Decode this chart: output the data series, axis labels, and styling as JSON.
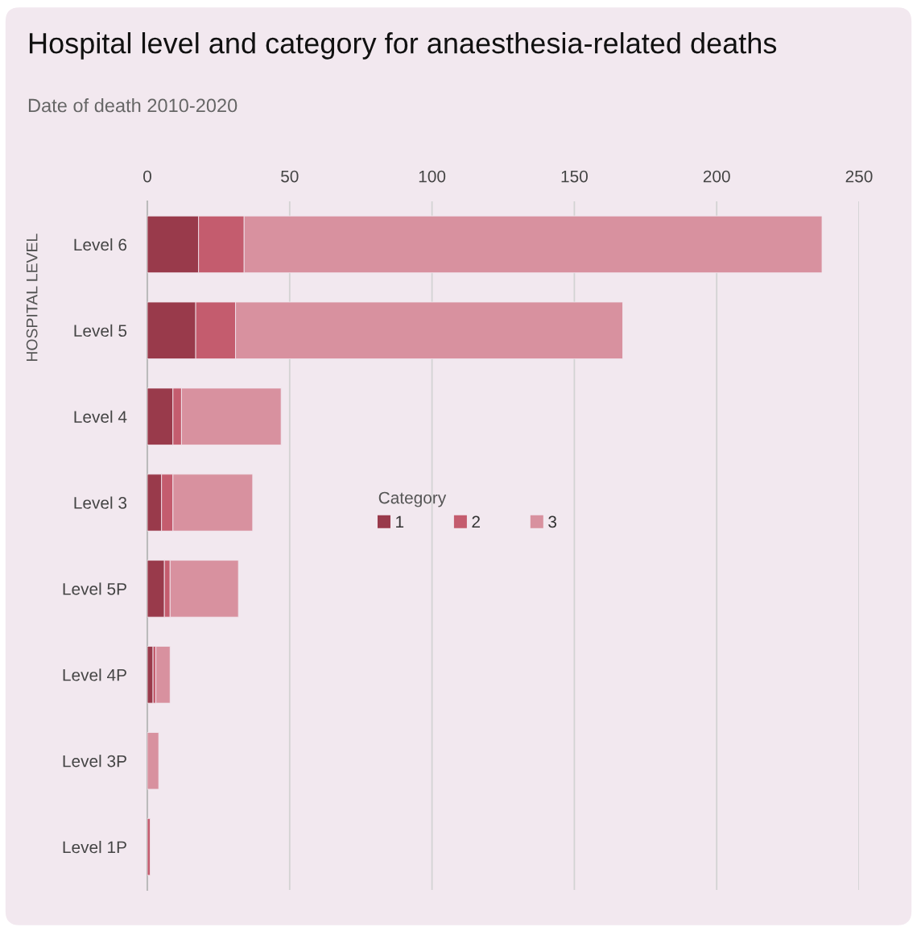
{
  "chart_data": {
    "type": "bar",
    "orientation": "horizontal",
    "stacked": true,
    "title": "Hospital level and category for anaesthesia-related deaths",
    "subtitle": "Date of death 2010-2020",
    "ylabel": "HOSPITAL LEVEL",
    "legend_title": "Category",
    "categories": [
      "Level 6",
      "Level 5",
      "Level 4",
      "Level 3",
      "Level 5P",
      "Level 4P",
      "Level 3P",
      "Level 1P"
    ],
    "series": [
      {
        "name": "1",
        "color": "#993a4b",
        "values": [
          18,
          17,
          9,
          5,
          6,
          2,
          0,
          0
        ]
      },
      {
        "name": "2",
        "color": "#c45c6e",
        "values": [
          16,
          14,
          3,
          4,
          2,
          1,
          0,
          1
        ]
      },
      {
        "name": "3",
        "color": "#d8919f",
        "values": [
          203,
          136,
          35,
          28,
          24,
          5,
          4,
          0
        ]
      }
    ],
    "xlim": [
      0,
      250
    ],
    "xticks": [
      0,
      50,
      100,
      150,
      200,
      250
    ],
    "grid": "x",
    "legend": "center"
  }
}
